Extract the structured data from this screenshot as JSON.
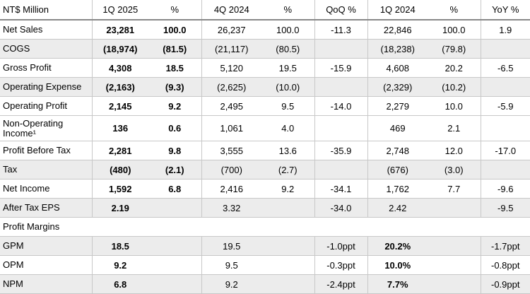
{
  "table": {
    "header": [
      "NT$ Million",
      "1Q 2025",
      "%",
      "4Q 2024",
      "%",
      "QoQ %",
      "1Q 2024",
      "%",
      "YoY %"
    ],
    "rows": [
      [
        "Net Sales",
        "23,281",
        "100.0",
        "26,237",
        "100.0",
        "-11.3",
        "22,846",
        "100.0",
        "1.9"
      ],
      [
        "COGS",
        "(18,974)",
        "(81.5)",
        "(21,117)",
        "(80.5)",
        null,
        "(18,238)",
        "(79.8)",
        null
      ],
      [
        "Gross Profit",
        "4,308",
        "18.5",
        "5,120",
        "19.5",
        "-15.9",
        "4,608",
        "20.2",
        "-6.5"
      ],
      [
        "Operating Expense",
        "(2,163)",
        "(9.3)",
        "(2,625)",
        "(10.0)",
        null,
        "(2,329)",
        "(10.2)",
        null
      ],
      [
        "Operating Profit",
        "2,145",
        "9.2",
        "2,495",
        "9.5",
        "-14.0",
        "2,279",
        "10.0",
        "-5.9"
      ],
      [
        "Non-Operating Income¹",
        "136",
        "0.6",
        "1,061",
        "4.0",
        null,
        "469",
        "2.1",
        null
      ],
      [
        "Profit Before Tax",
        "2,281",
        "9.8",
        "3,555",
        "13.6",
        "-35.9",
        "2,748",
        "12.0",
        "-17.0"
      ],
      [
        "Tax",
        "(480)",
        "(2.1)",
        "(700)",
        "(2.7)",
        null,
        "(676)",
        "(3.0)",
        null
      ],
      [
        "Net Income",
        "1,592",
        "6.8",
        "2,416",
        "9.2",
        "-34.1",
        "1,762",
        "7.7",
        "-9.6"
      ],
      [
        "After Tax EPS",
        "2.19",
        null,
        "3.32",
        null,
        "-34.0",
        "2.42",
        null,
        "-9.5"
      ]
    ],
    "section_title": "Profit Margins",
    "margin_rows": [
      [
        "GPM",
        "18.5",
        null,
        "19.5",
        null,
        "-1.0ppt",
        "20.2%",
        null,
        "-1.7ppt"
      ],
      [
        "OPM",
        "9.2",
        null,
        "9.5",
        null,
        "-0.3ppt",
        "10.0%",
        null,
        "-0.8ppt"
      ],
      [
        "NPM",
        "6.8",
        null,
        "9.2",
        null,
        "-2.4ppt",
        "7.7%",
        null,
        "-0.9ppt"
      ]
    ]
  }
}
